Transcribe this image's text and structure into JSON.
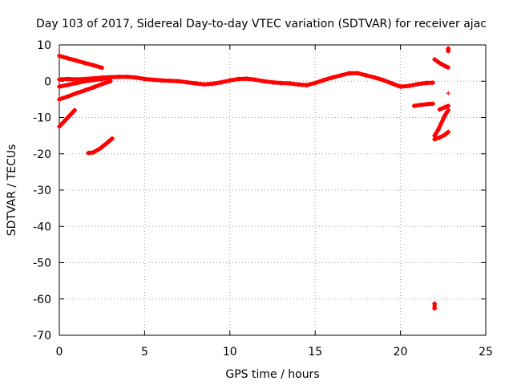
{
  "chart_data": {
    "type": "scatter",
    "title": "Day 103 of 2017, Sidereal Day-to-day VTEC variation (SDTVAR) for receiver ajac",
    "xlabel": "GPS time / hours",
    "ylabel": "SDTVAR / TECUs",
    "xlim": [
      0,
      25
    ],
    "ylim": [
      -70,
      10
    ],
    "xticks": [
      0,
      5,
      10,
      15,
      20,
      25
    ],
    "yticks": [
      -70,
      -60,
      -50,
      -40,
      -30,
      -20,
      -10,
      0,
      10
    ],
    "grid": true,
    "marker": "plus",
    "color": "#ff0000",
    "series": [
      {
        "x": [
          0.0,
          0.5,
          1.0,
          1.5,
          2.0,
          2.5
        ],
        "y": [
          7.0,
          6.3,
          5.7,
          5.0,
          4.4,
          3.7
        ]
      },
      {
        "x": [
          0.0,
          0.5,
          1.0,
          1.5,
          2.0,
          2.5,
          3.0,
          3.5,
          4.0,
          4.5,
          5.0,
          5.5,
          6.0,
          6.5,
          7.0,
          7.5,
          8.0,
          8.5,
          9.0,
          9.5,
          10.0,
          10.5,
          11.0,
          11.5,
          12.0,
          12.5,
          13.0,
          13.5,
          14.0,
          14.5,
          15.0,
          15.5,
          16.0,
          16.5,
          17.0,
          17.5,
          18.0,
          18.5,
          19.0,
          19.5,
          20.0,
          20.5,
          21.0,
          21.5,
          21.9
        ],
        "y": [
          0.5,
          0.6,
          0.5,
          0.6,
          0.8,
          1.0,
          1.1,
          1.2,
          1.2,
          1.0,
          0.6,
          0.4,
          0.2,
          0.1,
          0.0,
          -0.3,
          -0.6,
          -0.9,
          -0.7,
          -0.3,
          0.2,
          0.6,
          0.7,
          0.4,
          0.0,
          -0.3,
          -0.5,
          -0.6,
          -0.9,
          -1.1,
          -0.5,
          0.3,
          1.0,
          1.6,
          2.2,
          2.2,
          1.6,
          1.0,
          0.3,
          -0.6,
          -1.5,
          -1.3,
          -0.8,
          -0.5,
          -0.4
        ]
      },
      {
        "x": [
          0.0,
          0.5,
          1.0,
          1.5,
          2.0,
          2.5,
          3.0
        ],
        "y": [
          -1.5,
          -1.0,
          -0.5,
          0.0,
          0.3,
          0.6,
          0.8
        ]
      },
      {
        "x": [
          0.0,
          0.5,
          1.0,
          1.5,
          2.0,
          2.5,
          3.0
        ],
        "y": [
          -5.0,
          -4.2,
          -3.3,
          -2.5,
          -1.7,
          -0.8,
          0.0
        ]
      },
      {
        "x": [
          0.0,
          0.3,
          0.6,
          0.9
        ],
        "y": [
          -12.5,
          -11.0,
          -9.5,
          -8.0
        ]
      },
      {
        "x": [
          1.7,
          2.0,
          2.4,
          2.8,
          3.1
        ],
        "y": [
          -19.8,
          -19.6,
          -18.5,
          -17.0,
          -15.8
        ]
      },
      {
        "x": [
          20.8,
          21.2,
          21.6,
          21.9
        ],
        "y": [
          -6.8,
          -6.5,
          -6.3,
          -6.2
        ]
      },
      {
        "x": [
          22.0,
          22.3,
          22.6,
          22.8
        ],
        "y": [
          -16.0,
          -15.5,
          -14.8,
          -14.0
        ]
      },
      {
        "x": [
          22.0,
          22.2,
          22.4,
          22.6,
          22.8
        ],
        "y": [
          -15.0,
          -13.5,
          -11.5,
          -9.5,
          -8.0
        ]
      },
      {
        "x": [
          22.0,
          22.3,
          22.6,
          22.8
        ],
        "y": [
          6.0,
          5.0,
          4.2,
          3.8
        ]
      },
      {
        "x": [
          22.3,
          22.6,
          22.8
        ],
        "y": [
          -7.8,
          -7.2,
          -6.8
        ]
      },
      {
        "x": [
          22.8,
          22.8
        ],
        "y": [
          9.0,
          8.3
        ]
      },
      {
        "x": [
          22.8
        ],
        "y": [
          -3.3
        ]
      },
      {
        "x": [
          22.0,
          22.0
        ],
        "y": [
          -61.3,
          -62.6
        ]
      }
    ]
  }
}
